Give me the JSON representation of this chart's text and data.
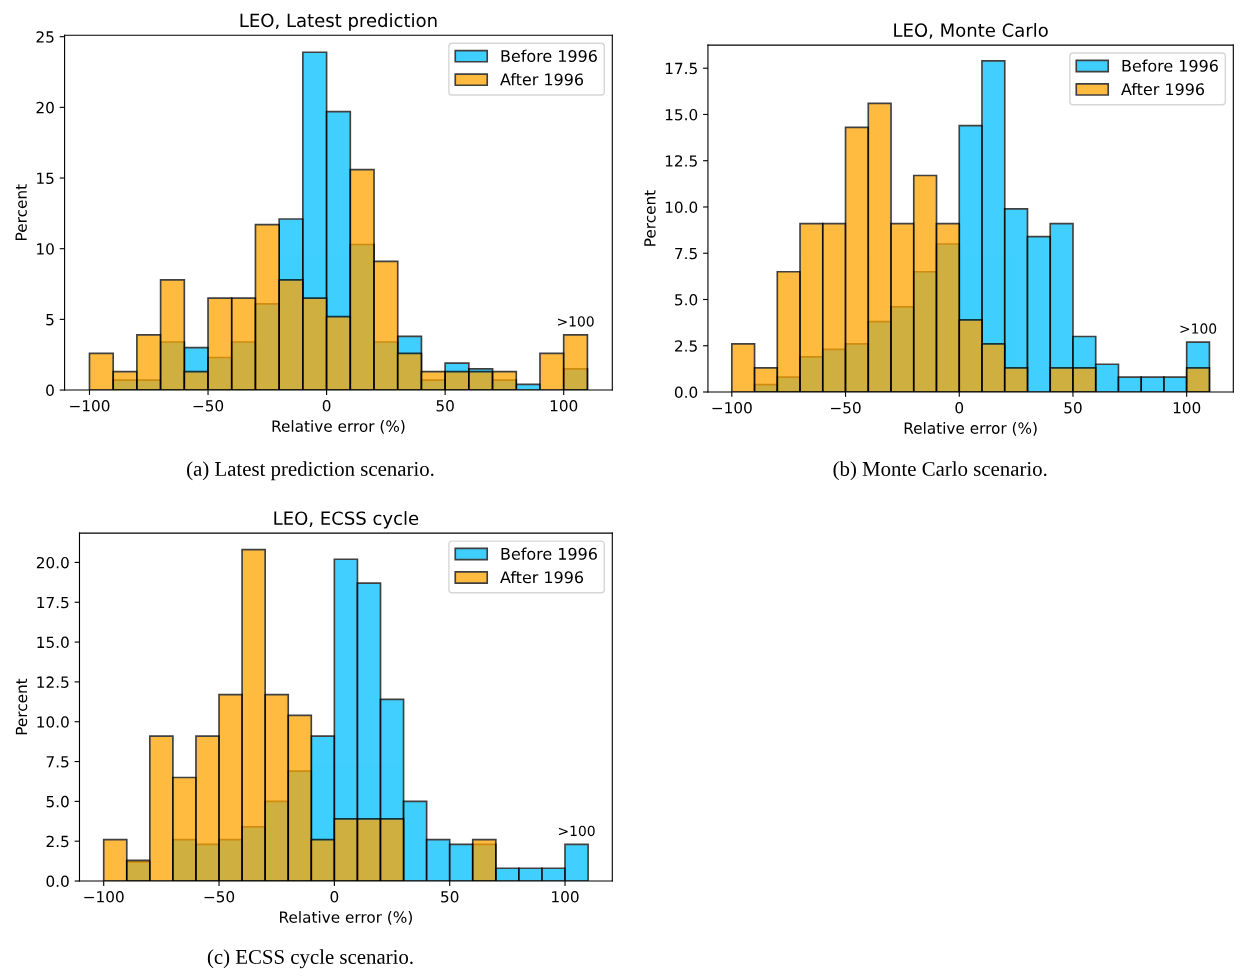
{
  "chart_data": [
    {
      "type": "histogram",
      "title": "LEO, Latest prediction",
      "xlabel": "Relative error (%)",
      "ylabel": "Percent",
      "bins": [
        -100,
        -90,
        -80,
        -70,
        -60,
        -50,
        -40,
        -30,
        -20,
        -10,
        0,
        10,
        20,
        30,
        40,
        50,
        60,
        70,
        80,
        90,
        100,
        110
      ],
      "series": [
        {
          "name": "Before 1996",
          "color": "#00bfff",
          "values": [
            0,
            0.7,
            0.7,
            3.4,
            3.0,
            2.3,
            3.4,
            6.1,
            12.1,
            23.9,
            19.7,
            10.3,
            3.4,
            3.8,
            0.7,
            1.9,
            1.5,
            0.7,
            0.4,
            0,
            1.5
          ]
        },
        {
          "name": "After 1996",
          "color": "#ffa500",
          "values": [
            2.6,
            1.3,
            3.9,
            7.8,
            1.3,
            6.5,
            6.5,
            11.7,
            7.8,
            6.5,
            5.2,
            15.6,
            9.1,
            2.6,
            1.3,
            1.3,
            1.3,
            1.3,
            0,
            2.6,
            3.9
          ]
        }
      ],
      "xlim": [
        -110.5,
        120.5
      ],
      "xticks": [
        -100,
        -50,
        0,
        50,
        100
      ],
      "ylim": [
        0,
        25.1
      ],
      "yticks": [
        0,
        5,
        10,
        15,
        20,
        25
      ],
      "annotations": [
        ">100",
        "(a) Latest prediction scenario."
      ],
      "legend": "top right",
      "grid": false
    },
    {
      "type": "histogram",
      "title": "LEO, Monte Carlo",
      "xlabel": "Relative error (%)",
      "ylabel": "Percent",
      "bins": [
        -100,
        -90,
        -80,
        -70,
        -60,
        -50,
        -40,
        -30,
        -20,
        -10,
        0,
        10,
        20,
        30,
        40,
        50,
        60,
        70,
        80,
        90,
        100,
        110
      ],
      "series": [
        {
          "name": "Before 1996",
          "color": "#00bfff",
          "values": [
            0,
            0.4,
            0.8,
            1.9,
            2.3,
            2.6,
            3.8,
            4.6,
            6.5,
            8.0,
            14.4,
            17.9,
            9.9,
            8.4,
            9.1,
            3.0,
            1.5,
            0.8,
            0.8,
            0.8,
            2.7
          ]
        },
        {
          "name": "After 1996",
          "color": "#ffa500",
          "values": [
            2.6,
            1.3,
            6.5,
            9.1,
            9.1,
            14.3,
            15.6,
            9.1,
            11.7,
            9.1,
            3.9,
            2.6,
            1.3,
            0,
            1.3,
            1.3,
            0,
            0,
            0,
            0,
            1.3
          ]
        }
      ],
      "xlim": [
        -110.5,
        120.5
      ],
      "xticks": [
        -100,
        -50,
        0,
        50,
        100
      ],
      "ylim": [
        0,
        18.75
      ],
      "yticks": [
        {
          "value": 0,
          "label": "0.0"
        },
        2.5,
        {
          "value": 5,
          "label": "5.0"
        },
        7.5,
        {
          "value": 10,
          "label": "10.0"
        },
        12.5,
        {
          "value": 15,
          "label": "15.0"
        },
        17.5
      ],
      "annotations": [
        ">100",
        "(b) Monte Carlo scenario."
      ],
      "legend": "top right",
      "grid": false
    },
    {
      "type": "histogram",
      "title": "LEO, ECSS cycle",
      "xlabel": "Relative error (%)",
      "ylabel": "Percent",
      "bins": [
        -100,
        -90,
        -80,
        -70,
        -60,
        -50,
        -40,
        -30,
        -20,
        -10,
        0,
        10,
        20,
        30,
        40,
        50,
        60,
        70,
        80,
        90,
        100,
        110
      ],
      "series": [
        {
          "name": "Before 1996",
          "color": "#00bfff",
          "values": [
            0,
            1.2,
            0,
            2.6,
            2.3,
            2.6,
            3.4,
            5.0,
            6.9,
            9.1,
            20.2,
            18.7,
            11.4,
            5.0,
            2.6,
            2.3,
            2.3,
            0.8,
            0.8,
            0.8,
            2.3
          ]
        },
        {
          "name": "After 1996",
          "color": "#ffa500",
          "values": [
            2.6,
            1.3,
            9.1,
            6.5,
            9.1,
            11.7,
            20.8,
            11.7,
            10.4,
            2.6,
            3.9,
            3.9,
            3.9,
            0,
            0,
            0,
            2.6,
            0,
            0,
            0,
            0
          ]
        }
      ],
      "xlim": [
        -110.5,
        120.5
      ],
      "xticks": [
        -100,
        -50,
        0,
        50,
        100
      ],
      "ylim": [
        0,
        21.84
      ],
      "yticks": [
        {
          "value": 0,
          "label": "0.0"
        },
        2.5,
        {
          "value": 5,
          "label": "5.0"
        },
        7.5,
        {
          "value": 10,
          "label": "10.0"
        },
        12.5,
        {
          "value": 15,
          "label": "15.0"
        },
        17.5,
        {
          "value": 20,
          "label": "20.0"
        }
      ],
      "annotations": [
        ">100",
        "(c) ECSS cycle scenario."
      ],
      "legend": "top right",
      "grid": false
    }
  ]
}
